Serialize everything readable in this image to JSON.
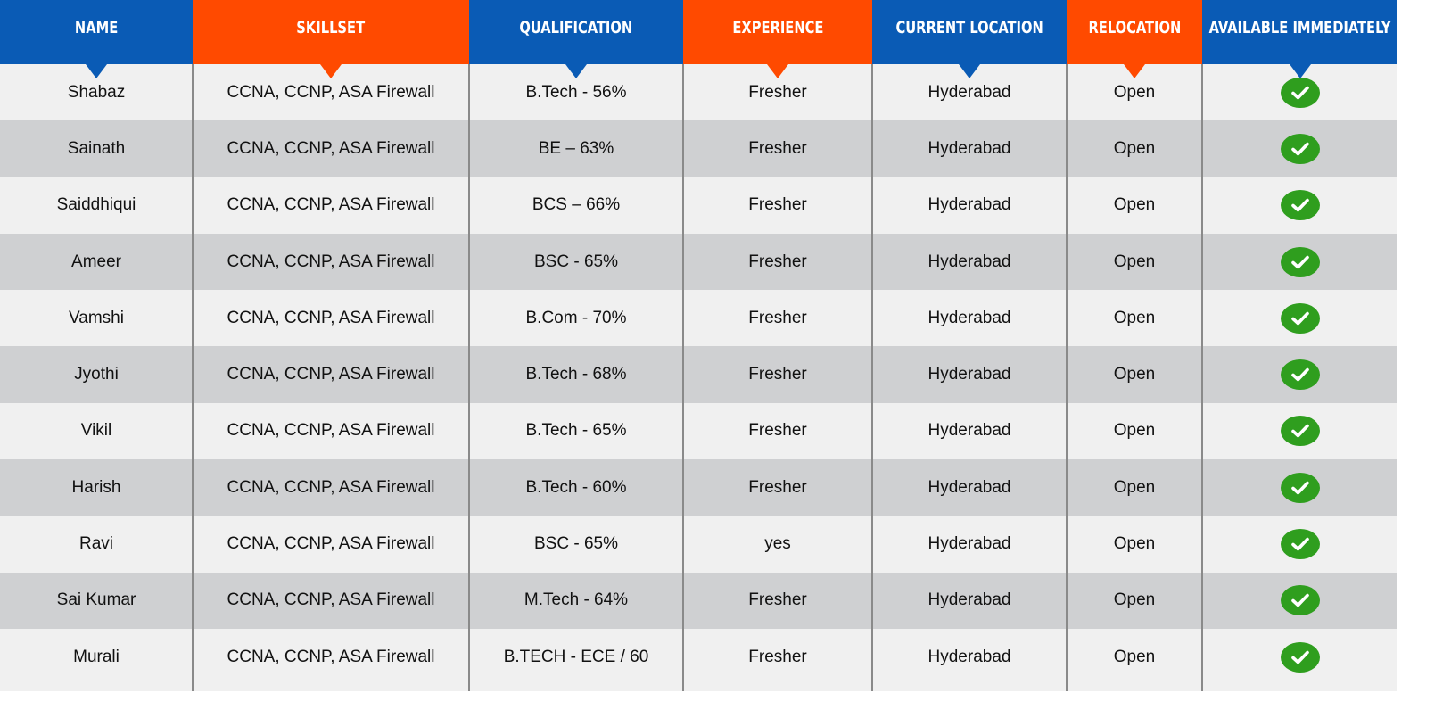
{
  "colors": {
    "blue": "#0a5bb5",
    "orange": "#ff4a00",
    "row_light": "#f0f0f0",
    "row_dark": "#cfd0d2",
    "check_green": "#2f9e1e"
  },
  "columns": [
    {
      "key": "name",
      "label": "NAME",
      "color": "blue"
    },
    {
      "key": "skillset",
      "label": "SKILLSET",
      "color": "orange"
    },
    {
      "key": "qualification",
      "label": "QUALIFICATION",
      "color": "blue"
    },
    {
      "key": "experience",
      "label": "EXPERIENCE",
      "color": "orange"
    },
    {
      "key": "location",
      "label": "CURRENT LOCATION",
      "color": "blue"
    },
    {
      "key": "relocation",
      "label": "RELOCATION",
      "color": "orange"
    },
    {
      "key": "available",
      "label": "AVAILABLE IMMEDIATELY",
      "color": "blue"
    }
  ],
  "rows": [
    {
      "name": "Shabaz",
      "skillset": "CCNA,  CCNP, ASA Firewall",
      "qualification": "B.Tech - 56%",
      "experience": "Fresher",
      "location": "Hyderabad",
      "relocation": "Open",
      "available": "check-icon"
    },
    {
      "name": "Sainath",
      "skillset": "CCNA,  CCNP, ASA Firewall",
      "qualification": "BE – 63%",
      "experience": "Fresher",
      "location": "Hyderabad",
      "relocation": "Open",
      "available": "check-icon"
    },
    {
      "name": "Saiddhiqui",
      "skillset": "CCNA,  CCNP, ASA Firewall",
      "qualification": "BCS – 66%",
      "experience": "Fresher",
      "location": "Hyderabad",
      "relocation": "Open",
      "available": "check-icon"
    },
    {
      "name": "Ameer",
      "skillset": "CCNA,  CCNP, ASA Firewall",
      "qualification": "BSC - 65%",
      "experience": "Fresher",
      "location": "Hyderabad",
      "relocation": "Open",
      "available": "check-icon"
    },
    {
      "name": "Vamshi",
      "skillset": "CCNA,  CCNP, ASA Firewall",
      "qualification": "B.Com - 70%",
      "experience": "Fresher",
      "location": "Hyderabad",
      "relocation": "Open",
      "available": "check-icon"
    },
    {
      "name": "Jyothi",
      "skillset": "CCNA,  CCNP, ASA Firewall",
      "qualification": "B.Tech - 68%",
      "experience": "Fresher",
      "location": "Hyderabad",
      "relocation": "Open",
      "available": "check-icon"
    },
    {
      "name": "Vikil",
      "skillset": "CCNA,  CCNP, ASA Firewall",
      "qualification": "B.Tech - 65%",
      "experience": "Fresher",
      "location": "Hyderabad",
      "relocation": "Open",
      "available": "check-icon"
    },
    {
      "name": "Harish",
      "skillset": "CCNA,  CCNP, ASA Firewall",
      "qualification": "B.Tech - 60%",
      "experience": "Fresher",
      "location": "Hyderabad",
      "relocation": "Open",
      "available": "check-icon"
    },
    {
      "name": "Ravi",
      "skillset": "CCNA,  CCNP, ASA Firewall",
      "qualification": "BSC - 65%",
      "experience": "yes",
      "location": "Hyderabad",
      "relocation": "Open",
      "available": "check-icon"
    },
    {
      "name": "Sai Kumar",
      "skillset": "CCNA,  CCNP, ASA Firewall",
      "qualification": "M.Tech - 64%",
      "experience": "Fresher",
      "location": "Hyderabad",
      "relocation": "Open",
      "available": "check-icon"
    },
    {
      "name": "Murali",
      "skillset": "CCNA,  CCNP, ASA Firewall",
      "qualification": "B.TECH - ECE / 60",
      "experience": "Fresher",
      "location": "Hyderabad",
      "relocation": "Open",
      "available": "check-icon"
    }
  ]
}
